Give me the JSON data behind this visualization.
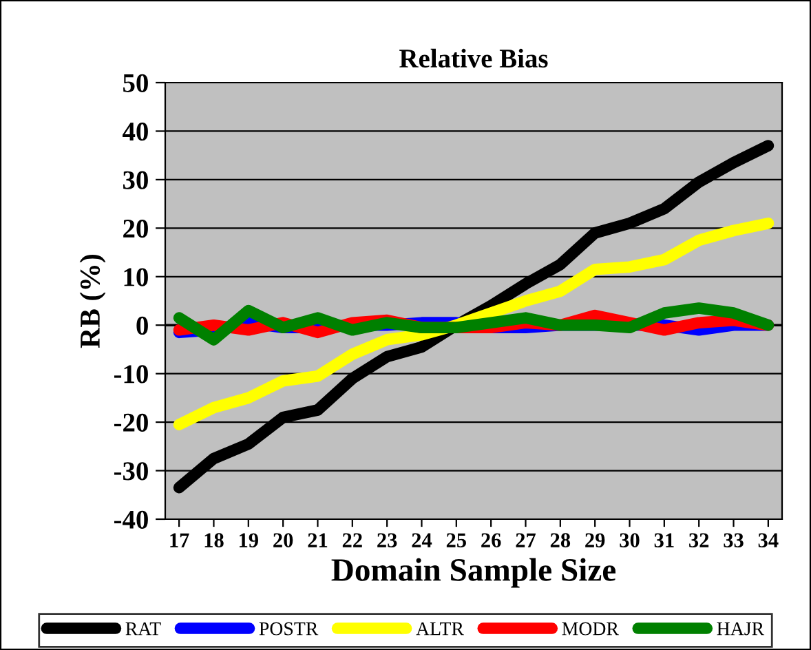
{
  "chart_data": {
    "type": "line",
    "title": "Relative Bias",
    "xlabel": "Domain Sample Size",
    "ylabel": "RB (%)",
    "categories": [
      "17",
      "18",
      "19",
      "20",
      "21",
      "22",
      "23",
      "24",
      "25",
      "26",
      "27",
      "28",
      "29",
      "30",
      "31",
      "32",
      "33",
      "34"
    ],
    "series": [
      {
        "name": "RAT",
        "color": "#000000",
        "values": [
          -33.5,
          -27.5,
          -24.5,
          -19,
          -17.5,
          -11,
          -6.5,
          -4.5,
          0,
          4,
          8.5,
          12.5,
          19,
          21,
          24,
          29.5,
          33.5,
          37
        ]
      },
      {
        "name": "POSTR",
        "color": "#0000ff",
        "values": [
          -1.5,
          -1,
          0.5,
          -0.5,
          -0.5,
          0,
          0,
          0.5,
          0.5,
          -0.5,
          -0.5,
          0,
          0,
          0,
          0,
          -1,
          0,
          0
        ]
      },
      {
        "name": "ALTR",
        "color": "#ffff00",
        "values": [
          -20.5,
          -17,
          -15,
          -11.5,
          -10.5,
          -6,
          -3,
          -2,
          0,
          2.5,
          5,
          7,
          11.5,
          12,
          13.5,
          17.5,
          19.5,
          21
        ]
      },
      {
        "name": "MODR",
        "color": "#ff0000",
        "values": [
          -1,
          0,
          -1,
          0.5,
          -1.5,
          0.5,
          1,
          -0.5,
          -0.5,
          -0.5,
          0.5,
          0,
          2,
          0.5,
          -1,
          0.5,
          1,
          0
        ]
      },
      {
        "name": "HAJR",
        "color": "#008000",
        "values": [
          1.5,
          -3,
          3,
          -0.5,
          1.5,
          -1,
          0.5,
          -0.5,
          -0.5,
          0.5,
          1.5,
          0,
          0,
          -0.5,
          2.5,
          3.5,
          2.5,
          0
        ]
      }
    ],
    "ylim": [
      -40,
      50
    ],
    "yticks": [
      -40,
      -30,
      -20,
      -10,
      0,
      10,
      20,
      30,
      40,
      50
    ],
    "grid": "y",
    "legend": "bottom",
    "marker": "none",
    "line_style": "solid"
  }
}
